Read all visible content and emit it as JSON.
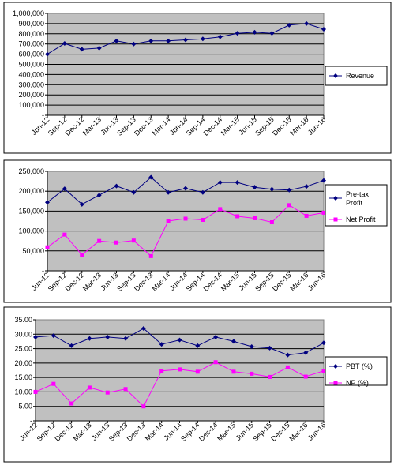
{
  "chart_data": [
    {
      "type": "line",
      "categories": [
        "Jun-12",
        "Sep-12",
        "Dec-12",
        "Mar-13",
        "Jun-13",
        "Sep-13",
        "Dec-13",
        "Mar-14",
        "Jun-14",
        "Sep-14",
        "Dec-14",
        "Mar-15",
        "Jun-15",
        "Sep-15",
        "Dec-15",
        "Mar-16",
        "Jun-16"
      ],
      "series": [
        {
          "name": "Revenue",
          "color": "#000080",
          "marker": "diamond",
          "values": [
            600000,
            705000,
            648000,
            660000,
            730000,
            700000,
            730000,
            730000,
            740000,
            750000,
            770000,
            805000,
            815000,
            805000,
            885000,
            900000,
            845000
          ]
        }
      ],
      "ylim": [
        0,
        1000000
      ],
      "yticks": [
        "-",
        "100,000",
        "200,000",
        "300,000",
        "400,000",
        "500,000",
        "600,000",
        "700,000",
        "800,000",
        "900,000",
        "1,000,000"
      ],
      "grid": true,
      "legend": "right"
    },
    {
      "type": "line",
      "categories": [
        "Jun-12",
        "Sep-12",
        "Dec-12",
        "Mar-13",
        "Jun-13",
        "Sep-13",
        "Dec-13",
        "Mar-14",
        "Jun-14",
        "Sep-14",
        "Dec-14",
        "Mar-15",
        "Jun-15",
        "Sep-15",
        "Dec-15",
        "Mar-16",
        "Jun-16"
      ],
      "series": [
        {
          "name": "Pre-tax Profit",
          "color": "#000080",
          "marker": "diamond",
          "values": [
            172000,
            206000,
            167000,
            190000,
            213000,
            197000,
            235000,
            197000,
            207000,
            197000,
            222000,
            222000,
            210000,
            205000,
            203000,
            212000,
            227000
          ]
        },
        {
          "name": "Net Profit",
          "color": "#ff00ff",
          "marker": "square",
          "values": [
            59000,
            91000,
            40000,
            75000,
            71000,
            76000,
            37000,
            125000,
            131000,
            128000,
            155000,
            137000,
            132000,
            122000,
            165000,
            138000,
            146000
          ]
        }
      ],
      "ylim": [
        0,
        250000
      ],
      "yticks": [
        "-",
        "50,000",
        "100,000",
        "150,000",
        "200,000",
        "250,000"
      ],
      "grid": true,
      "legend": "right"
    },
    {
      "type": "line",
      "categories": [
        "Jun-12",
        "Sep-12",
        "Dec-12",
        "Mar-13",
        "Jun-13",
        "Sep-13",
        "Dec-13",
        "Mar-14",
        "Jun-14",
        "Sep-14",
        "Dec-14",
        "Mar-15",
        "Jun-15",
        "Sep-15",
        "Dec-15",
        "Mar-16",
        "Jun-16"
      ],
      "series": [
        {
          "name": "PBT (%)",
          "color": "#000080",
          "marker": "diamond",
          "values": [
            29.0,
            29.5,
            26.0,
            28.5,
            29.0,
            28.5,
            32.0,
            26.5,
            28.0,
            26.0,
            29.0,
            27.5,
            25.7,
            25.2,
            22.8,
            23.6,
            27.0
          ]
        },
        {
          "name": "NP (%)",
          "color": "#ff00ff",
          "marker": "square",
          "values": [
            10.0,
            12.8,
            6.0,
            11.5,
            9.8,
            11.0,
            5.0,
            17.3,
            17.8,
            17.0,
            20.3,
            17.0,
            16.3,
            15.2,
            18.5,
            15.3,
            17.3
          ]
        }
      ],
      "ylim": [
        0,
        35
      ],
      "yticks": [
        "-",
        "5.00",
        "10.00",
        "15.00",
        "20.00",
        "25.00",
        "30.00",
        "35.00"
      ],
      "grid": true,
      "legend": "right"
    }
  ]
}
